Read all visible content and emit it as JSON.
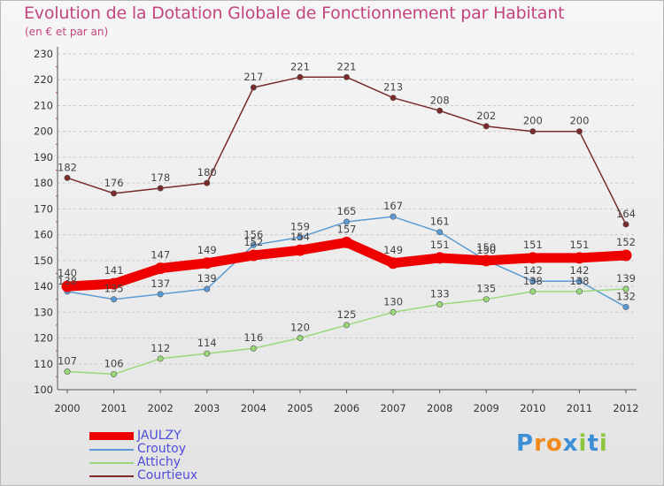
{
  "title": "Evolution de la Dotation Globale de Fonctionnement par Habitant",
  "subtitle": "(en € et par an)",
  "logo": {
    "text": "Proxiti",
    "letters": [
      "P",
      "r",
      "o",
      "x",
      "i",
      "t",
      "i"
    ],
    "colors": [
      "#3d8fd6",
      "#f08a1d",
      "#f08a1d",
      "#3d8fd6",
      "#8cc63f",
      "#3d8fd6",
      "#8cc63f"
    ]
  },
  "chart_data": {
    "type": "line",
    "title": "Evolution de la Dotation Globale de Fonctionnement par Habitant",
    "subtitle": "(en € et par an)",
    "xlabel": "",
    "ylabel": "",
    "categories": [
      "2000",
      "2001",
      "2002",
      "2003",
      "2004",
      "2005",
      "2006",
      "2007",
      "2008",
      "2009",
      "2010",
      "2011",
      "2012"
    ],
    "ylim": [
      100,
      230
    ],
    "yticks": [
      100,
      110,
      120,
      130,
      140,
      150,
      160,
      170,
      180,
      190,
      200,
      210,
      220,
      230
    ],
    "grid": "horizontal dashed",
    "legend_position": "bottom-left",
    "series": [
      {
        "name": "Courtieux",
        "color": "#7a2a2a",
        "width": "thin",
        "values": [
          182,
          176,
          178,
          180,
          217,
          221,
          221,
          213,
          208,
          202,
          200,
          200,
          164
        ]
      },
      {
        "name": "Croutoy",
        "color": "#5b9bd5",
        "width": "thin",
        "values": [
          138,
          135,
          137,
          139,
          156,
          159,
          165,
          167,
          161,
          150,
          142,
          142,
          132
        ]
      },
      {
        "name": "Attichy",
        "color": "#99d97a",
        "width": "thin",
        "values": [
          107,
          106,
          112,
          114,
          116,
          120,
          125,
          130,
          133,
          135,
          138,
          138,
          139
        ]
      },
      {
        "name": "JAULZY",
        "color": "#ee0000",
        "width": "thick",
        "values": [
          140,
          141,
          147,
          149,
          152,
          154,
          157,
          149,
          151,
          150,
          151,
          151,
          152
        ]
      }
    ],
    "legend_order": [
      "JAULZY",
      "Croutoy",
      "Attichy",
      "Courtieux"
    ]
  }
}
